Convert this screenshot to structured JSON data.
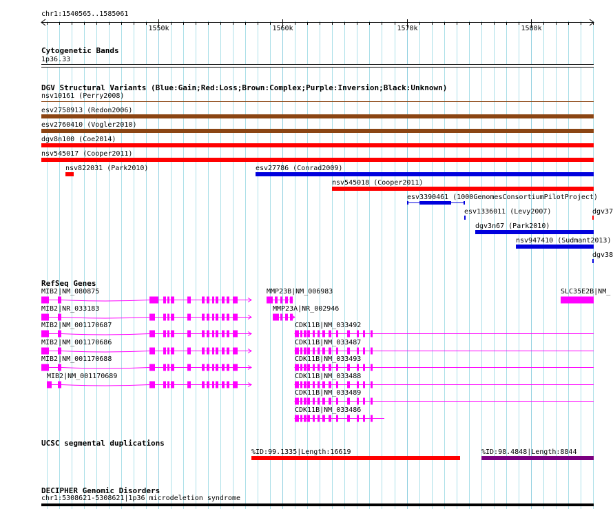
{
  "view": {
    "chrom": "chr1",
    "start": 1540565,
    "end": 1585061,
    "location_label": "chr1:1540565..1585061",
    "ticks": [
      1550000,
      1560000,
      1570000,
      1580000
    ],
    "tick_labels": [
      "1550k",
      "1560k",
      "1570k",
      "1580k"
    ]
  },
  "colors": {
    "gain": "#0000dd",
    "loss": "#ff0000",
    "complex": "#8b4513",
    "inversion": "#800080",
    "unknown": "#000000",
    "gene": "#ff00ff",
    "segdup_red": "#ff0000",
    "segdup_purple": "#7a0080",
    "grid": "#aadfe8"
  },
  "tracks": {
    "cytoband": {
      "title": "Cytogenetic Bands",
      "band": "1p36.33"
    },
    "dgv": {
      "title": "DGV Structural Variants (Blue:Gain;Red:Loss;Brown:Complex;Purple:Inversion;Black:Unknown)",
      "features": [
        {
          "label": "nsv10161 (Perry2008)",
          "type": "complex",
          "start": 1540565,
          "end": 1585061,
          "row": 0,
          "thin": true
        },
        {
          "label": "esv2758913 (Redon2006)",
          "type": "complex",
          "start": 1540565,
          "end": 1585061,
          "row": 1
        },
        {
          "label": "esv2760410 (Vogler2010)",
          "type": "complex",
          "start": 1540565,
          "end": 1585061,
          "row": 2
        },
        {
          "label": "dgv8n100 (Coe2014)",
          "type": "loss",
          "start": 1540565,
          "end": 1585061,
          "row": 3
        },
        {
          "label": "nsv545017 (Cooper2011)",
          "type": "loss",
          "start": 1540565,
          "end": 1585061,
          "row": 4
        },
        {
          "label": "nsv822031 (Park2010)",
          "type": "loss",
          "start": 1542500,
          "end": 1543200,
          "row": 5
        },
        {
          "label": "esv27786 (Conrad2009)",
          "type": "gain",
          "start": 1557800,
          "end": 1585061,
          "row": 5
        },
        {
          "label": "nsv545018 (Cooper2011)",
          "type": "loss",
          "start": 1564000,
          "end": 1585061,
          "row": 6
        },
        {
          "label": "esv3390461 (1000GenomesConsortiumPilotProject)",
          "type": "gain",
          "start": 1570000,
          "end": 1574600,
          "row": 7,
          "inner_start": 1571000,
          "inner_end": 1573600
        },
        {
          "label": "esv1336011 (Levy2007)",
          "type": "gain",
          "start": 1574650,
          "end": 1574750,
          "row": 8
        },
        {
          "label": "dgv37",
          "type": "loss",
          "start": 1584950,
          "end": 1585061,
          "row": 8
        },
        {
          "label": "dgv3n67 (Park2010)",
          "type": "gain",
          "start": 1575500,
          "end": 1585061,
          "row": 9
        },
        {
          "label": "nsv947410 (Sudmant2013)",
          "type": "gain",
          "start": 1578800,
          "end": 1585061,
          "row": 10
        },
        {
          "label": "dgv38",
          "type": "gain",
          "start": 1584950,
          "end": 1585061,
          "row": 11
        }
      ]
    },
    "refseq": {
      "title": "RefSeq Genes",
      "features": [
        {
          "label": "MIB2|NM_080875",
          "start": 1540565,
          "end": 1557500,
          "row": 0,
          "strand": "+",
          "exons": [
            [
              1540565,
              1541200
            ],
            [
              1541900,
              1542200
            ],
            [
              1549300,
              1550000
            ],
            [
              1550400,
              1550600
            ],
            [
              1550700,
              1550900
            ],
            [
              1551000,
              1551300
            ],
            [
              1552300,
              1552600
            ],
            [
              1553500,
              1553700
            ],
            [
              1553900,
              1554100
            ],
            [
              1554300,
              1554500
            ],
            [
              1554600,
              1554800
            ],
            [
              1555100,
              1555300
            ],
            [
              1555500,
              1555700
            ],
            [
              1556000,
              1556400
            ]
          ]
        },
        {
          "label": "MIB2|NR_033183",
          "start": 1540565,
          "end": 1557500,
          "row": 1,
          "strand": "+",
          "exons": [
            [
              1540565,
              1541200
            ],
            [
              1541900,
              1542200
            ],
            [
              1549300,
              1549700
            ],
            [
              1550400,
              1550600
            ],
            [
              1550700,
              1550900
            ],
            [
              1551000,
              1551300
            ],
            [
              1552300,
              1552600
            ],
            [
              1553500,
              1553700
            ],
            [
              1553900,
              1554100
            ],
            [
              1554300,
              1554500
            ],
            [
              1554600,
              1554800
            ],
            [
              1555100,
              1555300
            ],
            [
              1555500,
              1555700
            ],
            [
              1556000,
              1556400
            ]
          ]
        },
        {
          "label": "MIB2|NM_001170687",
          "start": 1540565,
          "end": 1557500,
          "row": 2,
          "strand": "+",
          "exons": [
            [
              1540565,
              1541200
            ],
            [
              1541900,
              1542200
            ],
            [
              1549300,
              1549700
            ],
            [
              1550400,
              1550600
            ],
            [
              1550700,
              1550900
            ],
            [
              1551000,
              1551300
            ],
            [
              1552300,
              1552600
            ],
            [
              1553500,
              1553700
            ],
            [
              1553900,
              1554100
            ],
            [
              1554300,
              1554500
            ],
            [
              1554600,
              1554800
            ],
            [
              1555100,
              1555300
            ],
            [
              1555500,
              1555700
            ],
            [
              1556000,
              1556400
            ]
          ]
        },
        {
          "label": "MIB2|NM_001170686",
          "start": 1540565,
          "end": 1557500,
          "row": 3,
          "strand": "+",
          "exons": [
            [
              1540565,
              1541200
            ],
            [
              1541900,
              1542200
            ],
            [
              1549300,
              1549700
            ],
            [
              1550400,
              1550600
            ],
            [
              1550700,
              1550900
            ],
            [
              1551000,
              1551300
            ],
            [
              1552300,
              1552600
            ],
            [
              1553500,
              1553700
            ],
            [
              1553900,
              1554100
            ],
            [
              1554300,
              1554500
            ],
            [
              1554600,
              1554800
            ],
            [
              1555100,
              1555300
            ],
            [
              1555500,
              1555700
            ],
            [
              1556000,
              1556400
            ]
          ]
        },
        {
          "label": "MIB2|NM_001170688",
          "start": 1540565,
          "end": 1557500,
          "row": 4,
          "strand": "+",
          "exons": [
            [
              1540565,
              1541200
            ],
            [
              1541900,
              1542200
            ],
            [
              1549300,
              1549700
            ],
            [
              1550400,
              1550600
            ],
            [
              1550700,
              1550900
            ],
            [
              1551000,
              1551300
            ],
            [
              1552300,
              1552600
            ],
            [
              1553500,
              1553700
            ],
            [
              1553900,
              1554100
            ],
            [
              1554300,
              1554500
            ],
            [
              1554600,
              1554800
            ],
            [
              1555100,
              1555300
            ],
            [
              1555500,
              1555700
            ],
            [
              1556000,
              1556400
            ]
          ]
        },
        {
          "label": "MIB2|NM_001170689",
          "start": 1541000,
          "end": 1557500,
          "row": 5,
          "strand": "+",
          "exons": [
            [
              1541000,
              1541400
            ],
            [
              1541900,
              1542200
            ],
            [
              1549300,
              1549700
            ],
            [
              1550400,
              1550600
            ],
            [
              1550700,
              1550900
            ],
            [
              1551000,
              1551300
            ],
            [
              1552300,
              1552600
            ],
            [
              1553500,
              1553700
            ],
            [
              1553900,
              1554100
            ],
            [
              1554300,
              1554500
            ],
            [
              1554600,
              1554800
            ],
            [
              1555100,
              1555300
            ],
            [
              1555500,
              1555700
            ],
            [
              1556000,
              1556400
            ]
          ]
        },
        {
          "label": "MMP23B|NM_006983",
          "start": 1558700,
          "end": 1560800,
          "row": 0,
          "strand": "+",
          "exons": [
            [
              1558700,
              1559200
            ],
            [
              1559400,
              1559600
            ],
            [
              1559800,
              1560000
            ],
            [
              1560200,
              1560400
            ],
            [
              1560600,
              1560800
            ]
          ]
        },
        {
          "label": "MMP23A|NR_002946",
          "start": 1559200,
          "end": 1561000,
          "row": 1,
          "strand": "+",
          "exons": [
            [
              1559200,
              1559700
            ],
            [
              1559800,
              1560000
            ],
            [
              1560200,
              1560400
            ],
            [
              1560600,
              1560800
            ]
          ]
        },
        {
          "label": "SLC35E2B|NM_",
          "start": 1582400,
          "end": 1585061,
          "row": 0,
          "strand": "+",
          "exons": [
            [
              1582400,
              1585061
            ]
          ]
        },
        {
          "label": "CDK11B|NM_033492",
          "start": 1561000,
          "end": 1585061,
          "row": 2,
          "strand": "-",
          "exons": [
            [
              1561000,
              1561300
            ],
            [
              1561400,
              1561600
            ],
            [
              1561700,
              1561900
            ],
            [
              1562000,
              1562200
            ],
            [
              1562400,
              1562600
            ],
            [
              1562800,
              1563000
            ],
            [
              1563200,
              1563400
            ],
            [
              1563700,
              1563900
            ],
            [
              1564300,
              1564500
            ],
            [
              1565200,
              1565400
            ],
            [
              1566000,
              1566100
            ],
            [
              1566500,
              1566600
            ],
            [
              1567100,
              1567200
            ]
          ]
        },
        {
          "label": "CDK11B|NM_033487",
          "start": 1561000,
          "end": 1585061,
          "row": 3,
          "strand": "-",
          "exons": [
            [
              1561000,
              1561300
            ],
            [
              1561400,
              1561600
            ],
            [
              1561700,
              1561900
            ],
            [
              1562000,
              1562200
            ],
            [
              1562400,
              1562600
            ],
            [
              1562800,
              1563000
            ],
            [
              1563200,
              1563400
            ],
            [
              1563700,
              1563900
            ],
            [
              1564300,
              1564500
            ],
            [
              1565200,
              1565400
            ],
            [
              1566000,
              1566100
            ],
            [
              1566500,
              1566600
            ],
            [
              1567100,
              1567200
            ]
          ]
        },
        {
          "label": "CDK11B|NM_033493",
          "start": 1561000,
          "end": 1585061,
          "row": 4,
          "strand": "-",
          "exons": [
            [
              1561000,
              1561300
            ],
            [
              1561400,
              1561600
            ],
            [
              1561700,
              1561900
            ],
            [
              1562000,
              1562200
            ],
            [
              1562400,
              1562600
            ],
            [
              1562800,
              1563000
            ],
            [
              1563200,
              1563400
            ],
            [
              1563700,
              1563900
            ],
            [
              1564300,
              1564500
            ],
            [
              1565200,
              1565400
            ],
            [
              1566000,
              1566100
            ],
            [
              1566500,
              1566600
            ],
            [
              1567100,
              1567200
            ]
          ]
        },
        {
          "label": "CDK11B|NM_033488",
          "start": 1561000,
          "end": 1585061,
          "row": 5,
          "strand": "-",
          "exons": [
            [
              1561000,
              1561300
            ],
            [
              1561400,
              1561600
            ],
            [
              1561700,
              1561900
            ],
            [
              1562000,
              1562200
            ],
            [
              1562400,
              1562600
            ],
            [
              1562800,
              1563000
            ],
            [
              1563200,
              1563400
            ],
            [
              1563700,
              1563900
            ],
            [
              1564300,
              1564500
            ],
            [
              1565200,
              1565400
            ],
            [
              1566000,
              1566100
            ],
            [
              1566500,
              1566600
            ],
            [
              1567100,
              1567200
            ]
          ]
        },
        {
          "label": "CDK11B|NM_033489",
          "start": 1561000,
          "end": 1585061,
          "row": 6,
          "strand": "-",
          "exons": [
            [
              1561000,
              1561300
            ],
            [
              1561400,
              1561600
            ],
            [
              1561700,
              1561900
            ],
            [
              1562000,
              1562200
            ],
            [
              1562400,
              1562600
            ],
            [
              1562800,
              1563000
            ],
            [
              1563200,
              1563400
            ],
            [
              1563700,
              1563900
            ],
            [
              1564300,
              1564500
            ],
            [
              1565200,
              1565400
            ],
            [
              1566000,
              1566100
            ],
            [
              1566500,
              1566600
            ],
            [
              1567100,
              1567200
            ]
          ]
        },
        {
          "label": "CDK11B|NM_033486",
          "start": 1561000,
          "end": 1568200,
          "row": 7,
          "strand": "-",
          "exons": [
            [
              1561000,
              1561300
            ],
            [
              1561400,
              1561600
            ],
            [
              1561700,
              1561900
            ],
            [
              1562000,
              1562200
            ],
            [
              1562400,
              1562600
            ],
            [
              1562800,
              1563000
            ],
            [
              1563200,
              1563400
            ],
            [
              1563700,
              1563900
            ],
            [
              1564300,
              1564500
            ],
            [
              1565200,
              1565400
            ],
            [
              1566000,
              1566100
            ],
            [
              1566500,
              1566600
            ],
            [
              1567100,
              1567200
            ]
          ]
        }
      ]
    },
    "segdup": {
      "title": "UCSC segmental duplications",
      "features": [
        {
          "label": "%ID:99.1335|Length:16619",
          "start": 1557500,
          "end": 1574300,
          "color": "segdup_red"
        },
        {
          "label": "%ID:98.4848|Length:8844",
          "start": 1576000,
          "end": 1585061,
          "color": "segdup_purple"
        }
      ]
    },
    "decipher": {
      "title": "DECIPHER Genomic Disorders",
      "features": [
        {
          "label": "chr1:5308621-5308621|1p36 microdeletion syndrome",
          "start": 1540565,
          "end": 1585061
        }
      ]
    }
  }
}
